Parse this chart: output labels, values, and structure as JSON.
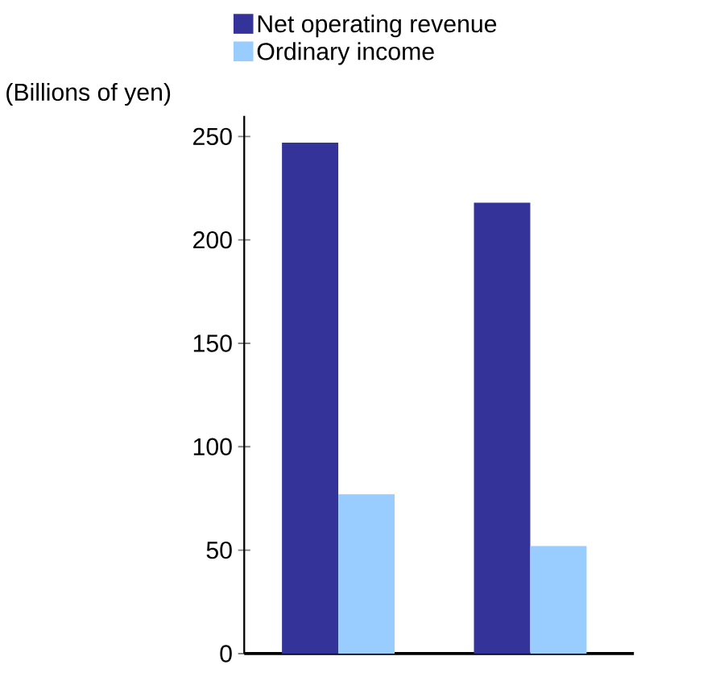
{
  "chart_data": {
    "type": "bar",
    "ylabel": "(Billions of yen)",
    "categories": [
      null,
      null
    ],
    "series": [
      {
        "name": "Net operating revenue",
        "color": "#333399",
        "values": [
          247,
          218
        ]
      },
      {
        "name": "Ordinary income",
        "color": "#99ccff",
        "values": [
          77,
          52
        ]
      }
    ],
    "ylim": [
      0,
      260
    ],
    "yticks": [
      0,
      50,
      100,
      150,
      200,
      250
    ],
    "legend": "top",
    "tick_labels": "y",
    "grid": false
  }
}
